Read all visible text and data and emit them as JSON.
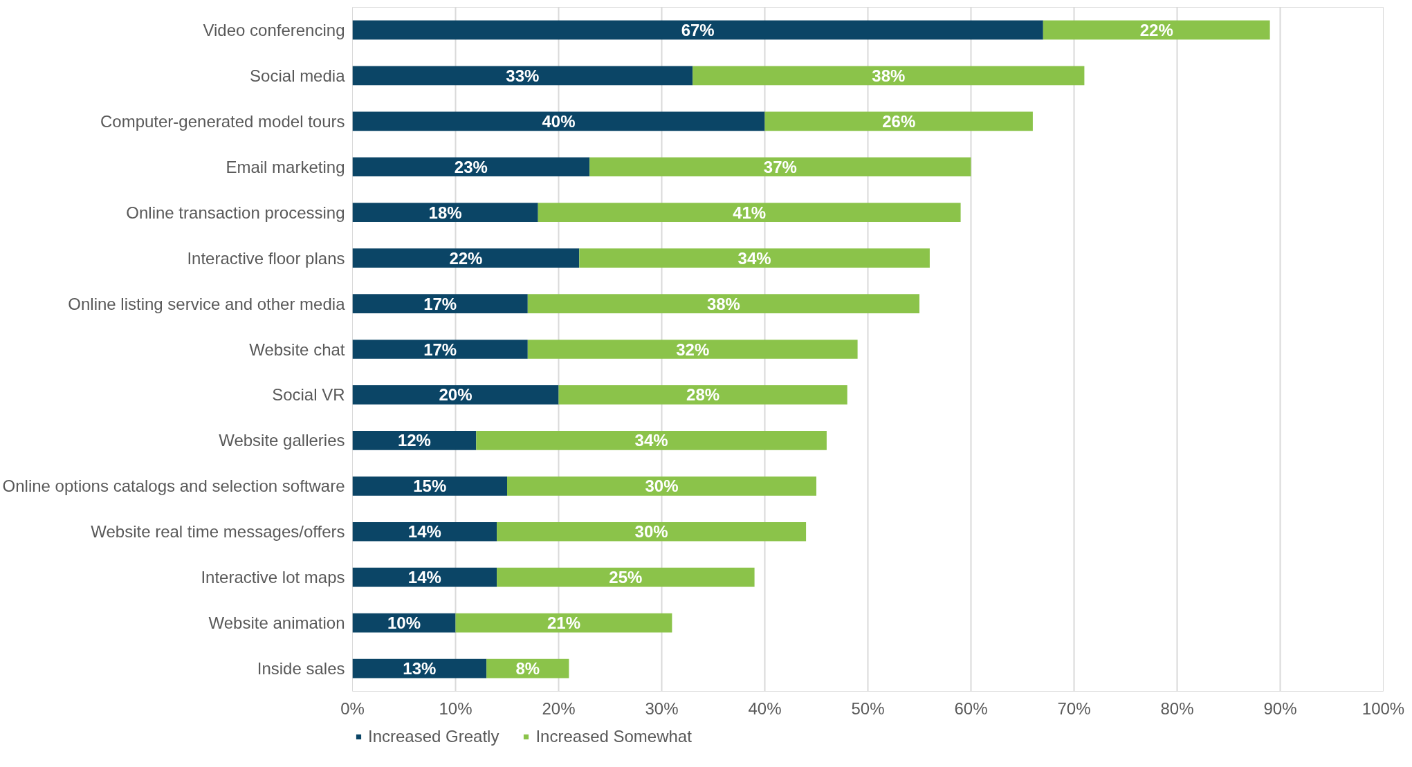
{
  "chart_data": {
    "type": "bar",
    "orientation": "horizontal",
    "stacked": true,
    "categories": [
      "Video conferencing",
      "Social media",
      "Computer-generated model tours",
      "Email marketing",
      "Online transaction processing",
      "Interactive floor plans",
      "Online listing service and other media",
      "Website chat",
      "Social VR",
      "Website galleries",
      "Online options catalogs and selection software",
      "Website real time messages/offers",
      "Interactive lot maps",
      "Website animation",
      "Inside sales"
    ],
    "series": [
      {
        "name": "Increased Greatly",
        "color": "#0b4566",
        "values": [
          67,
          33,
          40,
          23,
          18,
          22,
          17,
          17,
          20,
          12,
          15,
          14,
          14,
          10,
          13
        ],
        "value_labels": [
          "67%",
          "33%",
          "40%",
          "23%",
          "18%",
          "22%",
          "17%",
          "17%",
          "20%",
          "12%",
          "15%",
          "14%",
          "14%",
          "10%",
          "13%"
        ]
      },
      {
        "name": "Increased Somewhat",
        "color": "#8bc34a",
        "values": [
          22,
          38,
          26,
          37,
          41,
          34,
          38,
          32,
          28,
          34,
          30,
          30,
          25,
          21,
          8
        ],
        "value_labels": [
          "22%",
          "38%",
          "26%",
          "37%",
          "41%",
          "34%",
          "38%",
          "32%",
          "28%",
          "34%",
          "30%",
          "30%",
          "25%",
          "21%",
          "8%"
        ]
      }
    ],
    "xlim": [
      0,
      100
    ],
    "xticks": [
      {
        "value": 0,
        "label": "0%"
      },
      {
        "value": 10,
        "label": "10%"
      },
      {
        "value": 20,
        "label": "20%"
      },
      {
        "value": 30,
        "label": "30%"
      },
      {
        "value": 40,
        "label": "40%"
      },
      {
        "value": 50,
        "label": "50%"
      },
      {
        "value": 60,
        "label": "60%"
      },
      {
        "value": 70,
        "label": "70%"
      },
      {
        "value": 80,
        "label": "80%"
      },
      {
        "value": 90,
        "label": "90%"
      },
      {
        "value": 100,
        "label": "100%"
      }
    ],
    "grid": "x",
    "legend": "bottom left"
  }
}
